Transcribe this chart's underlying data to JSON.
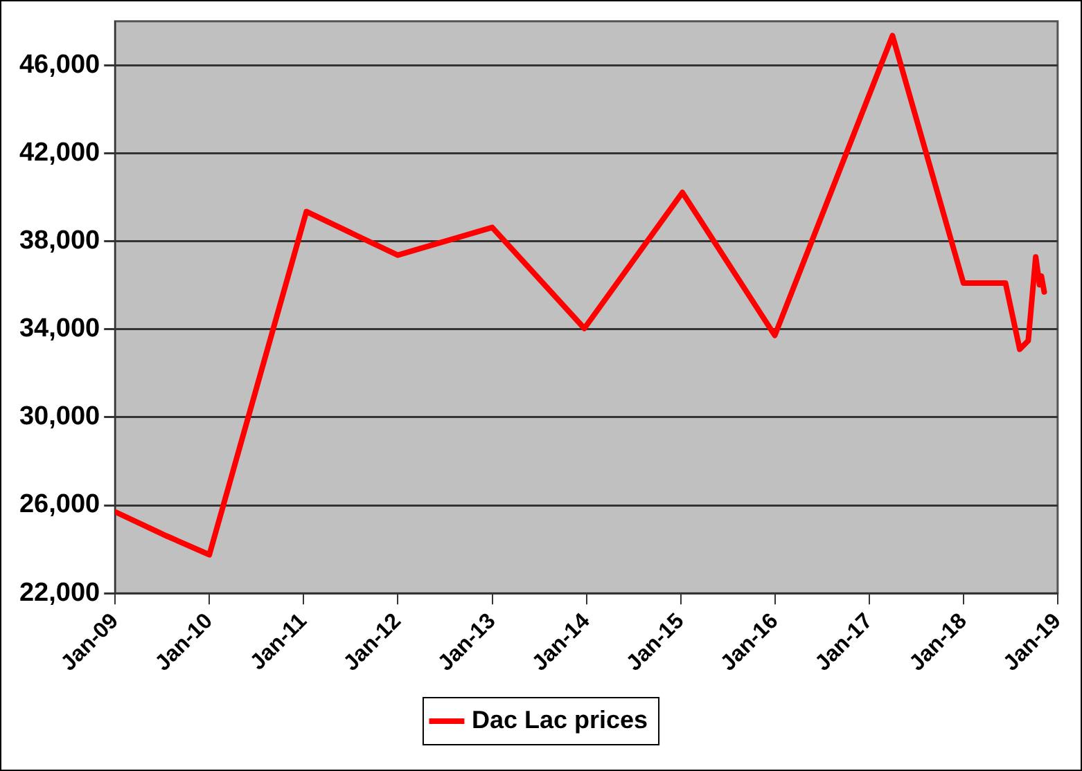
{
  "chart_data": {
    "type": "line",
    "x": [
      "2009-01-01",
      "2009-07-20",
      "2010-01-01",
      "2011-01-12",
      "2012-01-01",
      "2013-01-01",
      "2013-12-24",
      "2015-01-08",
      "2016-01-01",
      "2017-04-01",
      "2018-01-01",
      "2018-06-13",
      "2018-08-07",
      "2018-09-09",
      "2018-10-08",
      "2018-10-23",
      "2018-10-30",
      "2018-11-10"
    ],
    "series": [
      {
        "name": "Dac Lac prices",
        "color": "#ff0000",
        "values": [
          25700,
          24600,
          23750,
          39350,
          37370,
          38630,
          34040,
          40220,
          33720,
          47350,
          36100,
          36100,
          33090,
          33480,
          37290,
          36020,
          36420,
          35700
        ]
      }
    ],
    "xlim": [
      "2009-01",
      "2019-01"
    ],
    "xticks": [
      {
        "value": "2009-01",
        "label": "Jan-09"
      },
      {
        "value": "2010-01",
        "label": "Jan-10"
      },
      {
        "value": "2011-01",
        "label": "Jan-11"
      },
      {
        "value": "2012-01",
        "label": "Jan-12"
      },
      {
        "value": "2013-01",
        "label": "Jan-13"
      },
      {
        "value": "2014-01",
        "label": "Jan-14"
      },
      {
        "value": "2015-01",
        "label": "Jan-15"
      },
      {
        "value": "2016-01",
        "label": "Jan-16"
      },
      {
        "value": "2017-01",
        "label": "Jan-17"
      },
      {
        "value": "2018-01",
        "label": "Jan-18"
      },
      {
        "value": "2019-01",
        "label": "Jan-19"
      }
    ],
    "ylim": [
      22000,
      48000
    ],
    "yticks": [
      {
        "value": 22000,
        "label": "22,000"
      },
      {
        "value": 26000,
        "label": "26,000"
      },
      {
        "value": 30000,
        "label": "30,000"
      },
      {
        "value": 34000,
        "label": "34,000"
      },
      {
        "value": 38000,
        "label": "38,000"
      },
      {
        "value": 42000,
        "label": "42,000"
      },
      {
        "value": 46000,
        "label": "46,000"
      }
    ],
    "grid": "y",
    "legend": "bottom",
    "marker": "none",
    "line_style": "solid"
  }
}
